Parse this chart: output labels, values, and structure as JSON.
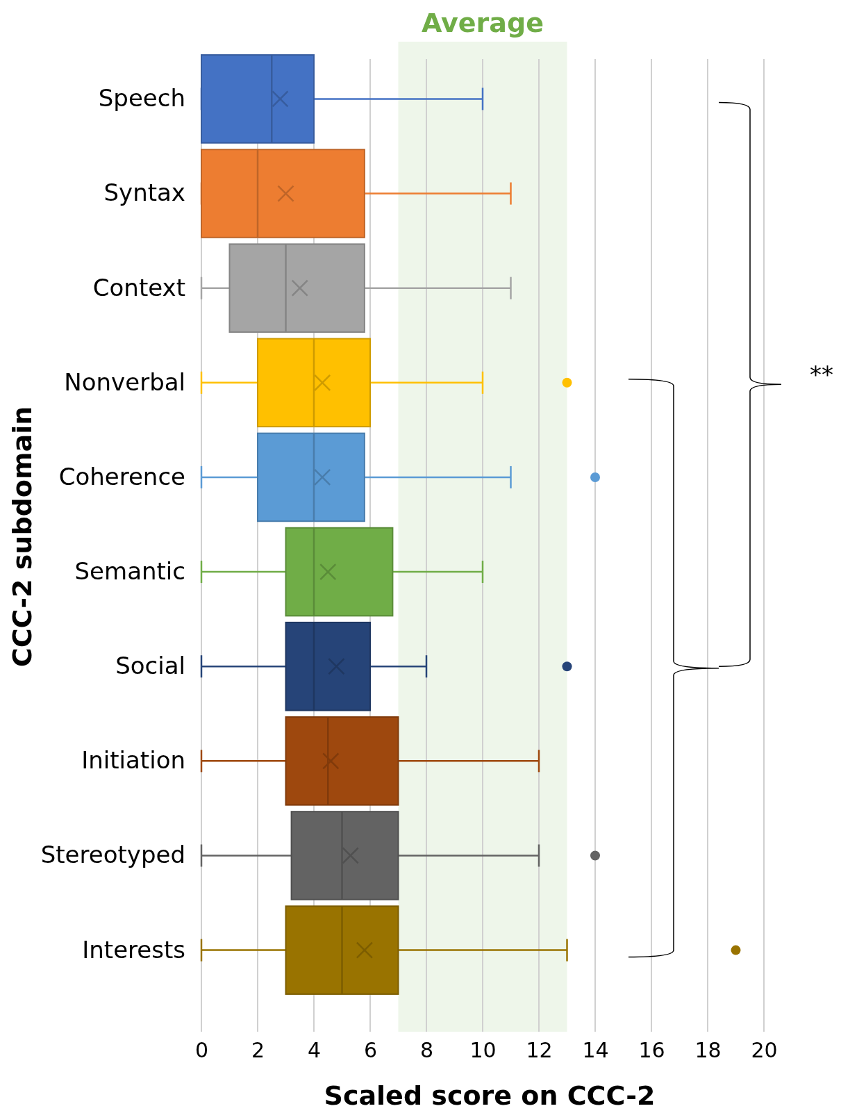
{
  "chart_data": {
    "type": "box",
    "orientation": "horizontal",
    "xlabel": "Scaled score on CCC-2",
    "ylabel": "CCC-2 subdomain",
    "categories": [
      "Speech",
      "Syntax",
      "Context",
      "Nonverbal",
      "Coherence",
      "Semantic",
      "Social",
      "Initiation",
      "Stereotyped",
      "Interests"
    ],
    "colors": [
      "#4472c4",
      "#ed7d31",
      "#a5a5a5",
      "#ffc000",
      "#5b9bd5",
      "#70ad47",
      "#264478",
      "#9e480e",
      "#636363",
      "#997300"
    ],
    "boxes": [
      {
        "low": 0,
        "q1": 0,
        "median": 2.5,
        "q3": 4,
        "high": 10,
        "mean": 2.8
      },
      {
        "low": 0,
        "q1": 0,
        "median": 2,
        "q3": 5.8,
        "high": 11,
        "mean": 3
      },
      {
        "low": 0,
        "q1": 1,
        "median": 3,
        "q3": 5.8,
        "high": 11,
        "mean": 3.5
      },
      {
        "low": 0,
        "q1": 2,
        "median": 4,
        "q3": 6,
        "high": 10,
        "mean": 4.3,
        "outliers": [
          13
        ]
      },
      {
        "low": 0,
        "q1": 2,
        "median": 4,
        "q3": 5.8,
        "high": 11,
        "mean": 4.3,
        "outliers": [
          14
        ]
      },
      {
        "low": 0,
        "q1": 3,
        "median": 4,
        "q3": 6.8,
        "high": 10,
        "mean": 4.5
      },
      {
        "low": 0,
        "q1": 3,
        "median": 4,
        "q3": 6,
        "high": 8,
        "mean": 4.8,
        "outliers": [
          13
        ]
      },
      {
        "low": 0,
        "q1": 3,
        "median": 4.5,
        "q3": 7,
        "high": 12,
        "mean": 4.6
      },
      {
        "low": 0,
        "q1": 3.2,
        "median": 5,
        "q3": 7,
        "high": 12,
        "mean": 5.3,
        "outliers": [
          14
        ]
      },
      {
        "low": 0,
        "q1": 3,
        "median": 5,
        "q3": 7,
        "high": 13,
        "mean": 5.8,
        "outliers": [
          19
        ]
      }
    ],
    "xlim": [
      0,
      20
    ],
    "xticks": [
      0,
      2,
      4,
      6,
      8,
      10,
      12,
      14,
      16,
      18,
      20
    ],
    "grid": "x",
    "bands": [
      {
        "axis": "x",
        "from": 7,
        "to": 13,
        "label": "Average",
        "color": "#eef6ea"
      }
    ],
    "annotations": [
      "**"
    ]
  }
}
